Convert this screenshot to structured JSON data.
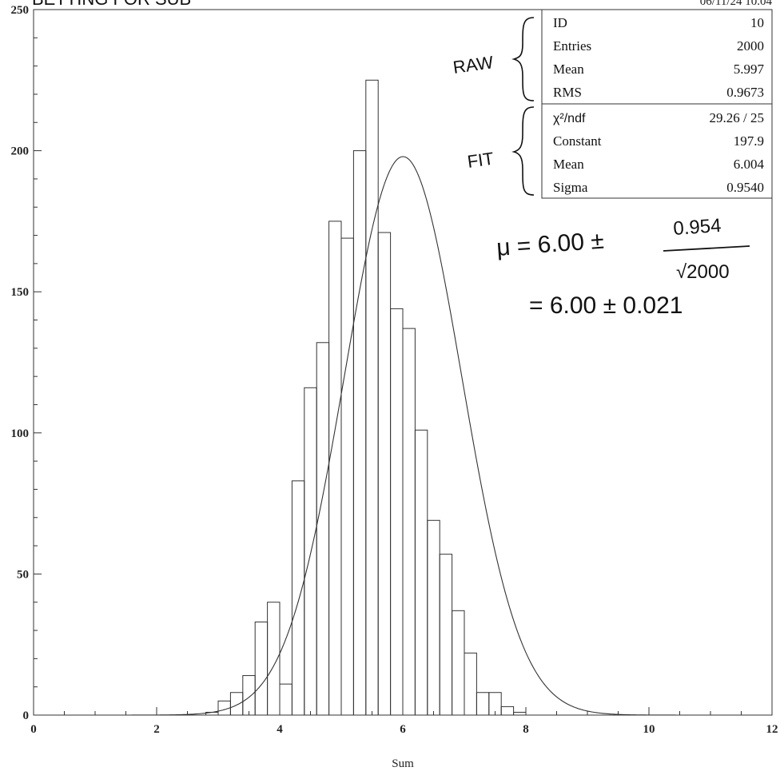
{
  "header": {
    "title_partial": "BETTING FOR  SUB",
    "timestamp": "06/11/24  10.04"
  },
  "stats_box": {
    "raw_rows": [
      {
        "label": "ID",
        "value": "10"
      },
      {
        "label": "Entries",
        "value": "2000"
      },
      {
        "label": "Mean",
        "value": "5.997"
      },
      {
        "label": "RMS",
        "value": "0.9673"
      }
    ],
    "fit_rows": [
      {
        "label": "χ²/ndf",
        "value": "29.26   /  25"
      },
      {
        "label": "Constant",
        "value": "197.9"
      },
      {
        "label": "Mean",
        "value": "6.004"
      },
      {
        "label": "Sigma",
        "value": "0.9540"
      }
    ]
  },
  "annotations": {
    "raw_label": "RAW",
    "fit_label": "FIT",
    "formula_lhs": "μ = 6.00 ±",
    "formula_numerator": "0.954",
    "formula_denominator": "√2000",
    "formula_result": "= 6.00 ± 0.021"
  },
  "chart_data": {
    "type": "bar",
    "xlabel": "Sum",
    "ylabel": "",
    "xlim": [
      0,
      12
    ],
    "ylim": [
      0,
      250
    ],
    "x_ticks": [
      0,
      2,
      4,
      6,
      8,
      10,
      12
    ],
    "y_ticks": [
      0,
      50,
      100,
      150,
      200,
      250
    ],
    "grid": false,
    "bin_width": 0.2,
    "bin_edges_start": 2.8,
    "histogram_values": [
      1,
      5,
      8,
      14,
      33,
      40,
      11,
      83,
      116,
      132,
      175,
      169,
      200,
      225,
      171,
      144,
      137,
      101,
      69,
      57,
      37,
      22,
      8,
      8,
      3,
      1
    ],
    "fit": {
      "function": "gaussian",
      "constant": 197.9,
      "mean": 6.004,
      "sigma": 0.954
    }
  }
}
